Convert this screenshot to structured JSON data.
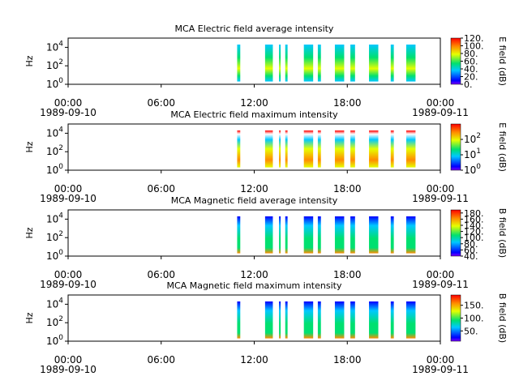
{
  "colors": {
    "purple": "#7f00ff",
    "blue": "#0000ff",
    "cyan": "#00c8ff",
    "green": "#00e070",
    "yellow": "#e6ff00",
    "orange": "#ff8c00",
    "red": "#ff0000"
  },
  "x_ticks": [
    {
      "time": "00:00",
      "date": "1989-09-10",
      "hours": 0
    },
    {
      "time": "06:00",
      "date": "",
      "hours": 6
    },
    {
      "time": "12:00",
      "date": "",
      "hours": 12
    },
    {
      "time": "18:00",
      "date": "",
      "hours": 18
    },
    {
      "time": "00:00",
      "date": "1989-09-11",
      "hours": 24
    }
  ],
  "y_ticks": [
    {
      "base": "10",
      "exp": "0",
      "value": 1
    },
    {
      "base": "10",
      "exp": "2",
      "value": 100
    },
    {
      "base": "10",
      "exp": "4",
      "value": 10000
    }
  ],
  "ylabel": "Hz",
  "chart_data": [
    {
      "type": "heatmap",
      "title": "MCA  Electric field average intensity",
      "ylabel": "Hz",
      "y_scale": "log",
      "ylim": [
        1,
        100000
      ],
      "xlim_hours": [
        0,
        24
      ],
      "colorbar": {
        "label": "E field (dB)",
        "scale": "linear",
        "min": 0,
        "max": 120,
        "ticks": [
          {
            "label": "120.",
            "value": 120
          },
          {
            "label": "100.",
            "value": 100
          },
          {
            "label": "80.",
            "value": 80
          },
          {
            "label": "60.",
            "value": 60
          },
          {
            "label": "40.",
            "value": 40
          },
          {
            "label": "20.",
            "value": 20
          },
          {
            "label": "0.",
            "value": 0
          }
        ]
      },
      "segments_hours": [
        [
          10.9,
          11.1
        ],
        [
          12.7,
          13.2
        ],
        [
          13.6,
          13.7
        ],
        [
          14.0,
          14.15
        ],
        [
          15.2,
          15.8
        ],
        [
          16.1,
          16.3
        ],
        [
          17.2,
          17.8
        ],
        [
          18.2,
          18.5
        ],
        [
          19.4,
          20.0
        ],
        [
          20.8,
          21.0
        ],
        [
          21.8,
          22.4
        ]
      ]
    },
    {
      "type": "heatmap",
      "title": "MCA  Electric field maximum intensity",
      "ylabel": "Hz",
      "y_scale": "log",
      "ylim": [
        1,
        100000
      ],
      "xlim_hours": [
        0,
        24
      ],
      "colorbar": {
        "label": "E field (dB)",
        "scale": "log",
        "min": 1,
        "max": 1000,
        "ticks": [
          {
            "base": "10",
            "exp": "2",
            "value": 100
          },
          {
            "base": "10",
            "exp": "1",
            "value": 10
          },
          {
            "base": "10",
            "exp": "0",
            "value": 1
          }
        ]
      },
      "segments_hours": [
        [
          10.9,
          11.1
        ],
        [
          12.7,
          13.2
        ],
        [
          13.6,
          13.7
        ],
        [
          14.0,
          14.15
        ],
        [
          15.2,
          15.8
        ],
        [
          16.1,
          16.3
        ],
        [
          17.2,
          17.8
        ],
        [
          18.2,
          18.5
        ],
        [
          19.4,
          20.0
        ],
        [
          20.8,
          21.0
        ],
        [
          21.8,
          22.4
        ]
      ]
    },
    {
      "type": "heatmap",
      "title": "MCA  Magnetic field average intensity",
      "ylabel": "Hz",
      "y_scale": "log",
      "ylim": [
        1,
        100000
      ],
      "xlim_hours": [
        0,
        24
      ],
      "colorbar": {
        "label": "B field (dB)",
        "scale": "linear",
        "min": 40,
        "max": 190,
        "ticks": [
          {
            "label": "180.",
            "value": 180
          },
          {
            "label": "160.",
            "value": 160
          },
          {
            "label": "140.",
            "value": 140
          },
          {
            "label": "120.",
            "value": 120
          },
          {
            "label": "100.",
            "value": 100
          },
          {
            "label": "80.",
            "value": 80
          },
          {
            "label": "60.",
            "value": 60
          },
          {
            "label": "40.",
            "value": 40
          }
        ]
      },
      "segments_hours": [
        [
          10.9,
          11.1
        ],
        [
          12.7,
          13.2
        ],
        [
          13.6,
          13.7
        ],
        [
          14.0,
          14.15
        ],
        [
          15.2,
          15.8
        ],
        [
          16.1,
          16.3
        ],
        [
          17.2,
          17.8
        ],
        [
          18.2,
          18.5
        ],
        [
          19.4,
          20.0
        ],
        [
          20.8,
          21.0
        ],
        [
          21.8,
          22.4
        ]
      ]
    },
    {
      "type": "heatmap",
      "title": "MCA  Magnetic field maximum intensity",
      "ylabel": "Hz",
      "y_scale": "log",
      "ylim": [
        1,
        100000
      ],
      "xlim_hours": [
        0,
        24
      ],
      "colorbar": {
        "label": "B field (dB)",
        "scale": "linear",
        "min": 10,
        "max": 190,
        "ticks": [
          {
            "label": "150.",
            "value": 150
          },
          {
            "label": "100.",
            "value": 100
          },
          {
            "label": "50.",
            "value": 50
          }
        ]
      },
      "segments_hours": [
        [
          10.9,
          11.1
        ],
        [
          12.7,
          13.2
        ],
        [
          13.6,
          13.7
        ],
        [
          14.0,
          14.15
        ],
        [
          15.2,
          15.8
        ],
        [
          16.1,
          16.3
        ],
        [
          17.2,
          17.8
        ],
        [
          18.2,
          18.5
        ],
        [
          19.4,
          20.0
        ],
        [
          20.8,
          21.0
        ],
        [
          21.8,
          22.4
        ]
      ]
    }
  ]
}
